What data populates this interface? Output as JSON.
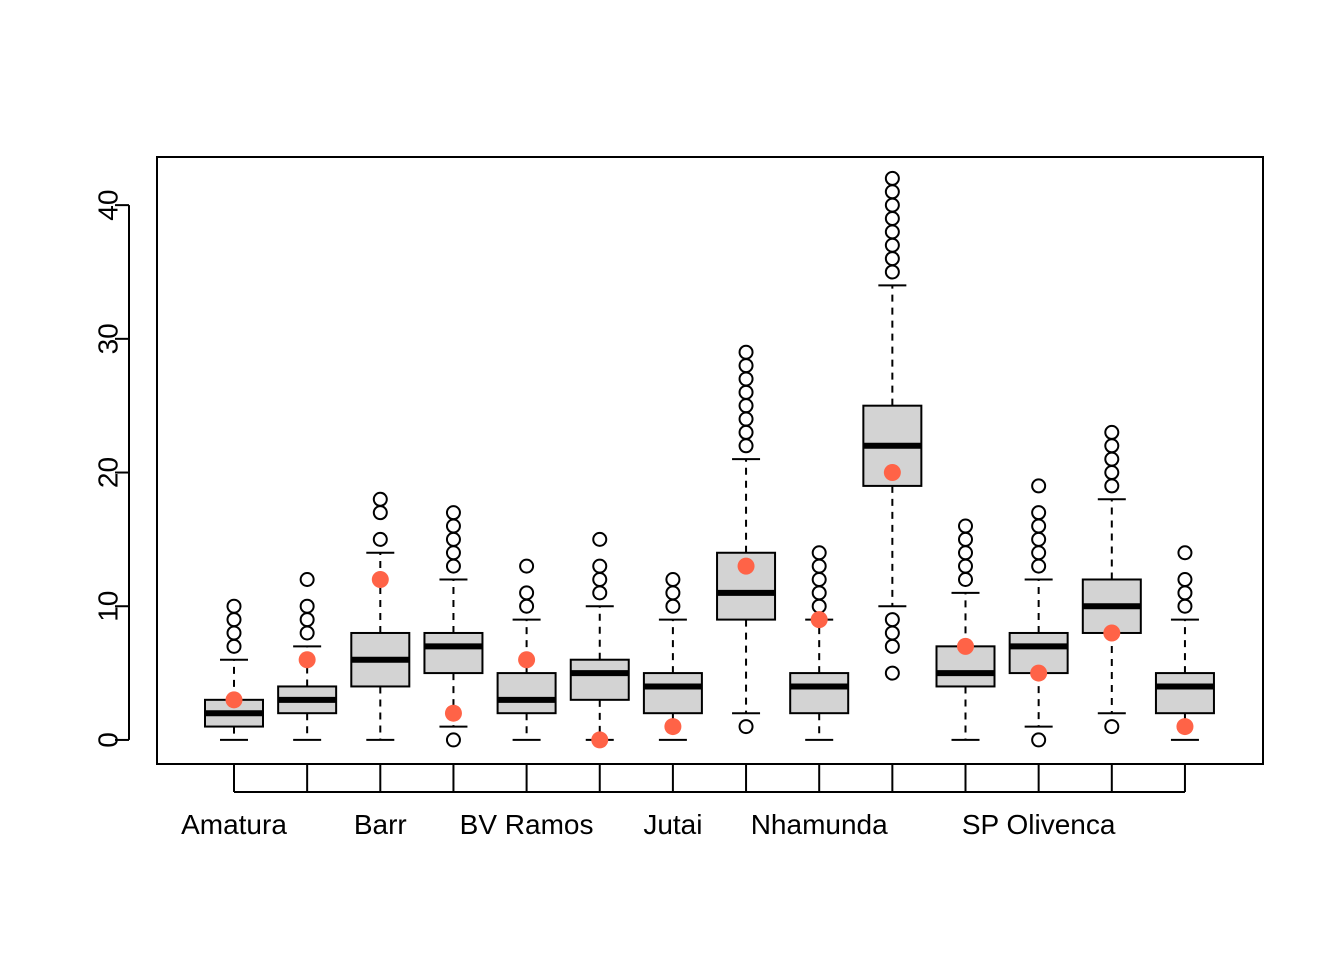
{
  "chart_data": {
    "type": "boxplot",
    "title": "",
    "xlabel": "",
    "ylabel": "",
    "ylim": [
      -1.8,
      43.6
    ],
    "yticks": [
      0,
      10,
      20,
      30,
      40
    ],
    "tick_labels_y": [
      "0",
      "10",
      "20",
      "30",
      "40"
    ],
    "x_tick_labels": [
      {
        "index": 0,
        "label": "Amatura"
      },
      {
        "index": 2,
        "label": "Barr"
      },
      {
        "index": 4,
        "label": "BV Ramos"
      },
      {
        "index": 6,
        "label": "Jutai"
      },
      {
        "index": 8,
        "label": "Nhamunda"
      },
      {
        "index": 11,
        "label": "SP Olivenca"
      }
    ],
    "box_fill": "#d3d3d3",
    "point_color": "#ff6347",
    "boxes": [
      {
        "whisker_low": 0,
        "q1": 1,
        "median": 2,
        "q3": 3,
        "whisker_high": 6,
        "outliers": [
          7,
          8,
          9,
          10
        ],
        "point": 3
      },
      {
        "whisker_low": 0,
        "q1": 2,
        "median": 3,
        "q3": 4,
        "whisker_high": 7,
        "outliers": [
          8,
          9,
          10,
          12
        ],
        "point": 6
      },
      {
        "whisker_low": 0,
        "q1": 4,
        "median": 6,
        "q3": 8,
        "whisker_high": 14,
        "outliers": [
          15,
          17,
          18
        ],
        "point": 12
      },
      {
        "whisker_low": 1,
        "q1": 5,
        "median": 7,
        "q3": 8,
        "whisker_high": 12,
        "outliers": [
          0,
          13,
          14,
          15,
          16,
          17
        ],
        "point": 2
      },
      {
        "whisker_low": 0,
        "q1": 2,
        "median": 3,
        "q3": 5,
        "whisker_high": 9,
        "outliers": [
          10,
          11,
          13
        ],
        "point": 6
      },
      {
        "whisker_low": 0,
        "q1": 3,
        "median": 5,
        "q3": 6,
        "whisker_high": 10,
        "outliers": [
          11,
          12,
          13,
          15
        ],
        "point": 0
      },
      {
        "whisker_low": 0,
        "q1": 2,
        "median": 4,
        "q3": 5,
        "whisker_high": 9,
        "outliers": [
          10,
          11,
          12
        ],
        "point": 1
      },
      {
        "whisker_low": 2,
        "q1": 9,
        "median": 11,
        "q3": 14,
        "whisker_high": 21,
        "outliers": [
          1,
          22,
          23,
          24,
          25,
          26,
          27,
          28,
          29
        ],
        "point": 13
      },
      {
        "whisker_low": 0,
        "q1": 2,
        "median": 4,
        "q3": 5,
        "whisker_high": 9,
        "outliers": [
          10,
          11,
          12,
          13,
          14
        ],
        "point": 9
      },
      {
        "whisker_low": 10,
        "q1": 19,
        "median": 22,
        "q3": 25,
        "whisker_high": 34,
        "outliers": [
          5,
          7,
          8,
          9,
          35,
          36,
          37,
          38,
          39,
          40,
          41,
          42
        ],
        "point": 20
      },
      {
        "whisker_low": 0,
        "q1": 4,
        "median": 5,
        "q3": 7,
        "whisker_high": 11,
        "outliers": [
          12,
          13,
          14,
          15,
          16
        ],
        "point": 7
      },
      {
        "whisker_low": 1,
        "q1": 5,
        "median": 7,
        "q3": 8,
        "whisker_high": 12,
        "outliers": [
          0,
          13,
          14,
          15,
          16,
          17,
          19
        ],
        "point": 5
      },
      {
        "whisker_low": 2,
        "q1": 8,
        "median": 10,
        "q3": 12,
        "whisker_high": 18,
        "outliers": [
          1,
          19,
          20,
          21,
          22,
          23
        ],
        "point": 8
      },
      {
        "whisker_low": 0,
        "q1": 2,
        "median": 4,
        "q3": 5,
        "whisker_high": 9,
        "outliers": [
          10,
          11,
          12,
          14
        ],
        "point": 1
      }
    ]
  }
}
